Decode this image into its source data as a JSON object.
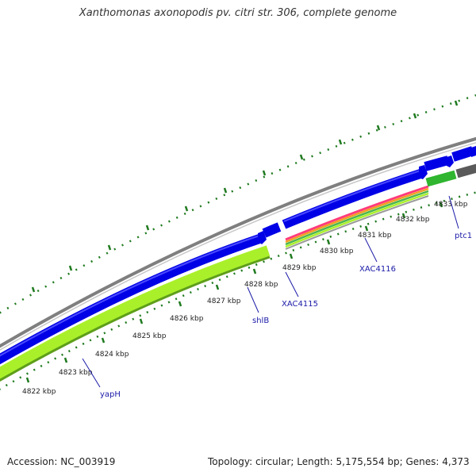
{
  "title": "Xanthomonas axonopodis pv. citri str. 306, complete genome",
  "footer": {
    "accession": "Accession: NC_003919",
    "summary": "Topology: circular; Length: 5,175,554 bp; Genes: 4,373"
  },
  "colors": {
    "backbone": "#7f7f7f",
    "cds": "#0000e6",
    "rna_lime": "#aaf02a",
    "rna_green": "#2fb52f",
    "gene_dark": "#5a5a5a",
    "tick": "#1f7a1f",
    "label": "#1a1aa8",
    "pink": "#ff3b7a"
  },
  "kbp_labels": [
    "4822 kbp",
    "4823 kbp",
    "4824 kbp",
    "4825 kbp",
    "4826 kbp",
    "4827 kbp",
    "4828 kbp",
    "4829 kbp",
    "4830 kbp",
    "4831 kbp",
    "4832 kbp",
    "4833 kbp"
  ],
  "gene_labels": {
    "yapH": "yapH",
    "shlB": "shlB",
    "XAC4115": "XAC4115",
    "XAC4116": "XAC4116",
    "ptc1": "ptc1"
  }
}
